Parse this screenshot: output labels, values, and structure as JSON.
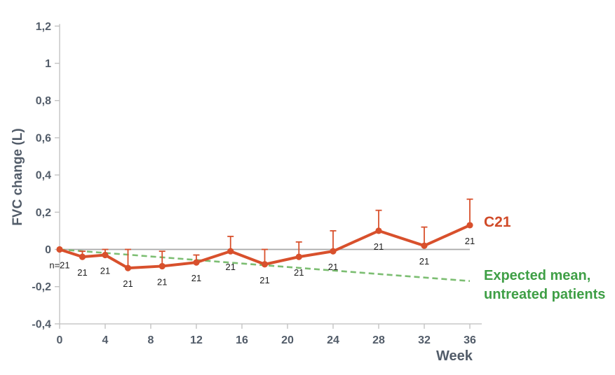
{
  "chart_data": {
    "type": "line",
    "title": "",
    "xlabel": "Week",
    "ylabel": "FVC change (L)",
    "xlim": [
      0,
      37
    ],
    "ylim": [
      -0.4,
      1.2
    ],
    "grid": false,
    "legend_position": "right-of-line-ends",
    "x_tick_values": [
      0,
      4,
      8,
      12,
      16,
      20,
      24,
      28,
      32,
      36
    ],
    "x_tick_labels": [
      "0",
      "4",
      "8",
      "12",
      "16",
      "20",
      "24",
      "28",
      "32",
      "36"
    ],
    "y_tick_values": [
      1.2,
      1.0,
      0.8,
      0.6,
      0.4,
      0.2,
      0,
      -0.2,
      -0.4
    ],
    "y_tick_labels": [
      "1,2",
      "1",
      "0,8",
      "0,6",
      "0,4",
      "0,2",
      "0",
      "-0,2",
      "-0,4"
    ],
    "series": [
      {
        "name": "C21",
        "type": "line-markers-errorbars",
        "x": [
          0,
          2,
          4,
          6,
          9,
          12,
          15,
          18,
          21,
          24,
          28,
          32,
          36
        ],
        "y": [
          0,
          -0.04,
          -0.03,
          -0.1,
          -0.09,
          -0.07,
          -0.01,
          -0.08,
          -0.04,
          -0.01,
          0.1,
          0.02,
          0.13
        ],
        "error_up": [
          0,
          0.03,
          0.03,
          0.1,
          0.08,
          0.04,
          0.08,
          0.08,
          0.08,
          0.11,
          0.11,
          0.1,
          0.14
        ],
        "point_labels": [
          "n=21",
          "21",
          "21",
          "21",
          "21",
          "21",
          "21",
          "21",
          "21",
          "21",
          "21",
          "21",
          "21"
        ]
      },
      {
        "name": "Expected mean, untreated patients",
        "type": "dashed-line",
        "x": [
          0,
          36
        ],
        "y": [
          0,
          -0.17
        ]
      }
    ],
    "colors": {
      "series": "#d8502c",
      "series_text": "#d04a28",
      "expected_line": "#7cbe72",
      "expected_text": "#3f9f46",
      "axis_text": "#525c69",
      "point_label_text": "#1c1c1c",
      "axis_line": "#c3c3c3",
      "zero_line": "#a8a8a8"
    }
  },
  "labels": {
    "ylabel": "FVC change (L)",
    "xlabel": "Week",
    "series1": "C21",
    "series2_line1": "Expected mean,",
    "series2_line2": "untreated patients"
  }
}
